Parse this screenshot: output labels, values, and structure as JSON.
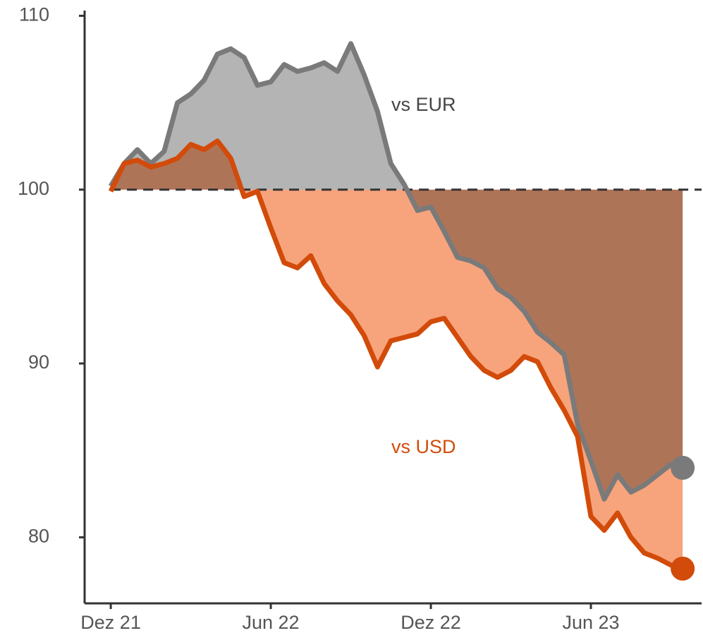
{
  "chart_data": {
    "type": "line",
    "x": [
      0,
      0.5,
      1,
      1.5,
      2,
      2.5,
      3,
      3.5,
      4,
      4.5,
      5,
      5.5,
      6,
      6.5,
      7,
      7.5,
      8,
      8.5,
      9,
      9.5,
      10,
      10.5,
      11,
      11.5,
      12,
      12.5,
      13,
      13.5,
      14,
      14.5,
      15,
      15.5,
      16,
      16.5,
      17,
      17.5,
      18,
      18.5,
      19,
      19.5,
      20,
      20.5,
      21,
      21.44
    ],
    "series": [
      {
        "name": "vs EUR",
        "color": "#7a7a7a",
        "fill": "#b4b4b4",
        "values": [
          100.2,
          101.5,
          102.3,
          101.5,
          102.2,
          105,
          105.5,
          106.3,
          107.8,
          108.1,
          107.6,
          106,
          106.2,
          107.2,
          106.8,
          107,
          107.3,
          106.8,
          108.4,
          106.6,
          104.5,
          101.5,
          100.3,
          98.8,
          99,
          97.6,
          96.1,
          95.9,
          95.5,
          94.3,
          93.8,
          93,
          91.8,
          91.2,
          90.5,
          86.5,
          84.4,
          82.2,
          83.6,
          82.6,
          83,
          83.6,
          84.2,
          84
        ]
      },
      {
        "name": "vs USD",
        "color": "#d24b0a",
        "fill": "#f7a47c",
        "values": [
          99.9,
          101.5,
          101.7,
          101.3,
          101.5,
          101.8,
          102.6,
          102.3,
          102.8,
          101.8,
          99.6,
          99.9,
          97.8,
          95.8,
          95.5,
          96.2,
          94.6,
          93.6,
          92.8,
          91.6,
          89.8,
          91.3,
          91.5,
          91.7,
          92.4,
          92.6,
          91.5,
          90.4,
          89.6,
          89.2,
          89.6,
          90.4,
          90.1,
          88.6,
          87.3,
          85.8,
          81.2,
          80.4,
          81.4,
          80,
          79.1,
          78.8,
          78.4,
          78.2
        ]
      }
    ],
    "reference_line": 100,
    "xlim": [
      -0.98,
      22.15
    ],
    "xticks": [
      {
        "value": 0,
        "label": "Dez 21"
      },
      {
        "value": 6,
        "label": "Jun 22"
      },
      {
        "value": 12,
        "label": "Dez 22"
      },
      {
        "value": 18,
        "label": "Jun 23"
      }
    ],
    "ylim": [
      76.2,
      110.3
    ],
    "yticks": [
      80,
      90,
      100,
      110
    ],
    "grid": false
  }
}
